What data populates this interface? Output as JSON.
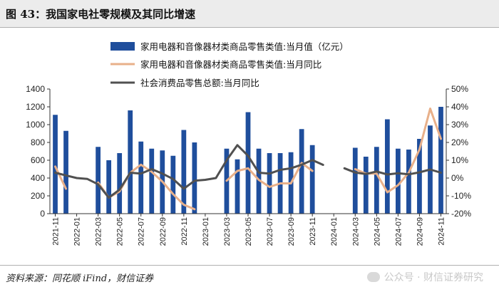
{
  "title": "图 43：我国家电社零规模及其同比增速",
  "source": "资料来源：同花顺 iFind，财信证券",
  "watermark": "公众号 · 财信证券研究",
  "colors": {
    "bar": "#1f4e9c",
    "line1": "#e8b08a",
    "line2": "#505050"
  },
  "chart_data": {
    "type": "bar+line",
    "months": [
      "2021-11",
      "2021-12",
      "2022-01",
      "2022-02",
      "2022-03",
      "2022-04",
      "2022-05",
      "2022-06",
      "2022-07",
      "2022-08",
      "2022-09",
      "2022-10",
      "2022-11",
      "2022-12",
      "2023-01",
      "2023-02",
      "2023-03",
      "2023-04",
      "2023-05",
      "2023-06",
      "2023-07",
      "2023-08",
      "2023-09",
      "2023-10",
      "2023-11",
      "2023-12",
      "2024-01",
      "2024-02",
      "2024-03",
      "2024-04",
      "2024-05",
      "2024-06",
      "2024-07",
      "2024-08",
      "2024-09",
      "2024-10",
      "2024-11"
    ],
    "x_tick_labels": [
      "2021-11",
      "2022-01",
      "2022-03",
      "2022-05",
      "2022-07",
      "2022-09",
      "2022-11",
      "2023-01",
      "2023-03",
      "2023-05",
      "2023-07",
      "2023-09",
      "2023-11",
      "2024-01",
      "2024-03",
      "2024-05",
      "2024-07",
      "2024-09",
      "2024-11"
    ],
    "series": [
      {
        "name": "家用电器和音像器材类商品零售类值:当月值（亿元）",
        "kind": "bar",
        "axis": "left",
        "values": [
          1110,
          930,
          null,
          null,
          750,
          600,
          680,
          1160,
          810,
          730,
          710,
          650,
          940,
          800,
          null,
          null,
          730,
          610,
          1140,
          730,
          680,
          680,
          690,
          950,
          770,
          null,
          null,
          null,
          740,
          640,
          750,
          1060,
          730,
          720,
          840,
          990,
          1200
        ]
      },
      {
        "name": "家用电器和音像器材类商品零售类值:当月同比",
        "kind": "line",
        "axis": "right",
        "values": [
          6.5,
          -6,
          null,
          null,
          -2.5,
          -11,
          -7.5,
          3,
          7.5,
          3.5,
          -2,
          -9,
          -15,
          -17.5,
          null,
          null,
          -1.5,
          4,
          5.5,
          -1,
          -5,
          -3,
          -3,
          8.5,
          4,
          null,
          null,
          null,
          5,
          2.5,
          2.5,
          -8,
          -4,
          3,
          16,
          39,
          22
        ]
      },
      {
        "name": "社会消费品零售总额:当月同比",
        "kind": "line",
        "axis": "right",
        "values": [
          3,
          1.5,
          0,
          -0.5,
          -3.5,
          -11,
          -6.5,
          3,
          2.5,
          5,
          2.5,
          -0.5,
          -6,
          -1.5,
          -1,
          0,
          10,
          18.5,
          12.5,
          3,
          2.5,
          4.6,
          5.5,
          7.5,
          10.1,
          7.4,
          null,
          5.5,
          3.1,
          2.3,
          3.7,
          2,
          2.7,
          2.1,
          3.2,
          4.8,
          3
        ]
      }
    ],
    "y_left": {
      "min": 0,
      "max": 1400,
      "step": 200,
      "ticks": [
        "0",
        "200",
        "400",
        "600",
        "800",
        "1000",
        "1200",
        "1400"
      ]
    },
    "y_right": {
      "min": -20,
      "max": 50,
      "step": 10,
      "ticks": [
        "-20%",
        "-10%",
        "0%",
        "10%",
        "20%",
        "30%",
        "40%",
        "50%"
      ]
    }
  }
}
